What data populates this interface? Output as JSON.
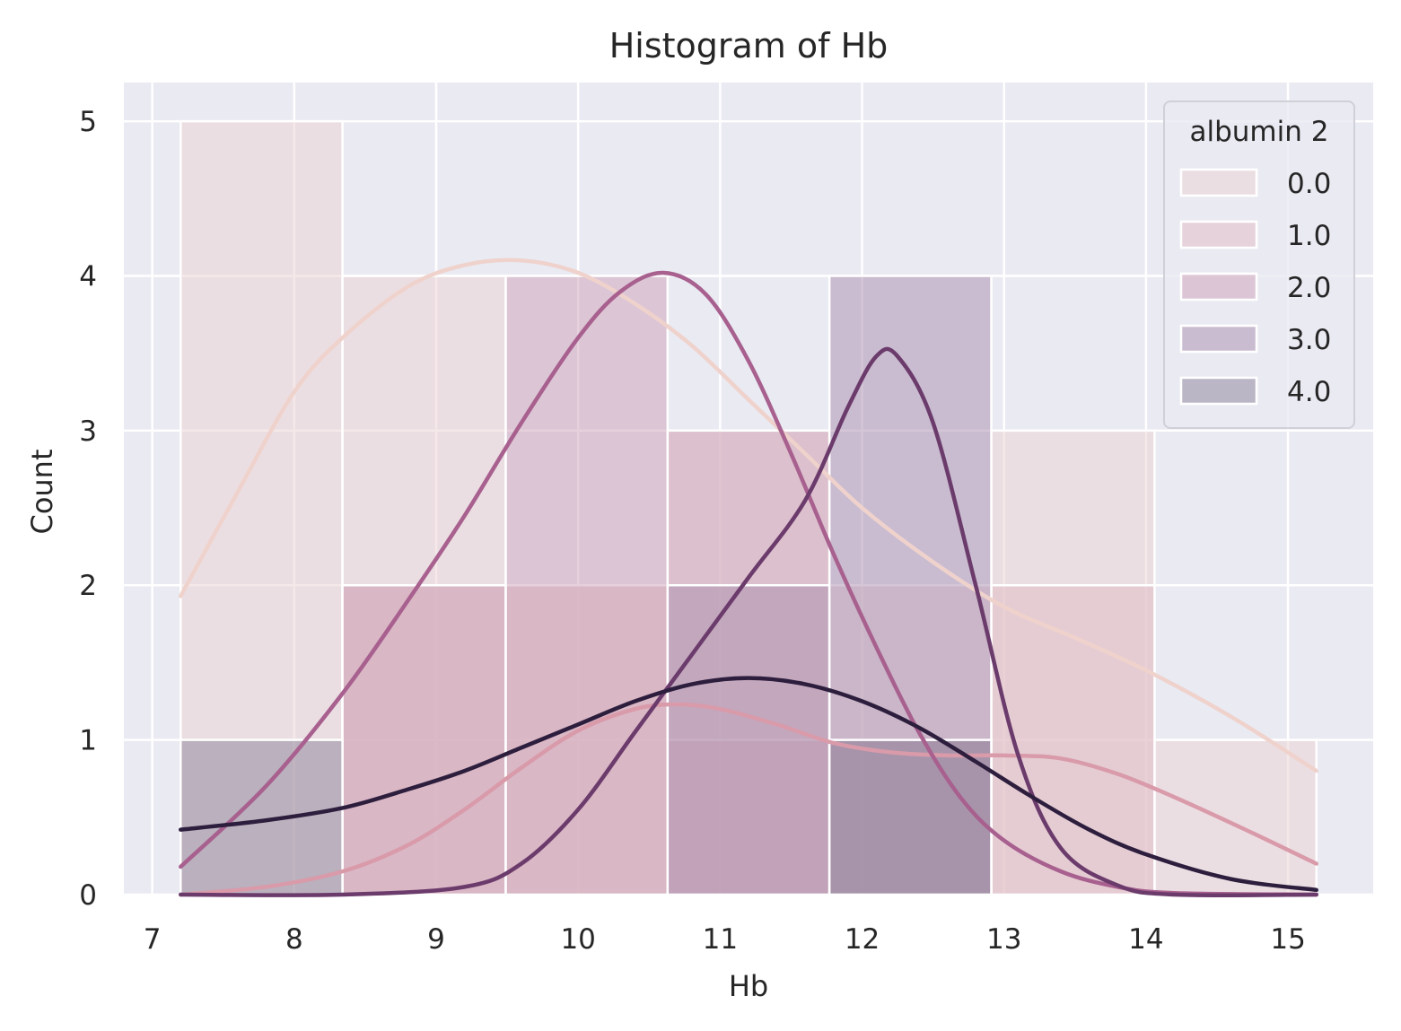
{
  "chart_data": {
    "type": "bar",
    "title": "Histogram of Hb",
    "xlabel": "Hb",
    "ylabel": "Count",
    "xlim": [
      6.8,
      15.6
    ],
    "ylim": [
      0,
      5.25
    ],
    "xticks": [
      "7",
      "8",
      "9",
      "10",
      "11",
      "12",
      "13",
      "14",
      "15"
    ],
    "yticks": [
      "0",
      "1",
      "2",
      "3",
      "4",
      "5"
    ],
    "grid": true,
    "bin_edges": [
      7.2,
      8.34,
      9.49,
      10.63,
      11.77,
      12.91,
      14.06,
      15.2
    ],
    "legend": {
      "title": "albumin 2",
      "placement": "top-right"
    },
    "series": [
      {
        "name": "0.0",
        "color": "#ebd2d2",
        "line_color": "#efd2cc",
        "counts": [
          5,
          4,
          2,
          3,
          2,
          3,
          1
        ],
        "kde": [
          [
            7.2,
            1.93
          ],
          [
            7.6,
            2.6
          ],
          [
            8.0,
            3.25
          ],
          [
            8.34,
            3.6
          ],
          [
            8.8,
            3.93
          ],
          [
            9.2,
            4.07
          ],
          [
            9.6,
            4.1
          ],
          [
            10.0,
            4.02
          ],
          [
            10.4,
            3.82
          ],
          [
            10.8,
            3.55
          ],
          [
            11.2,
            3.2
          ],
          [
            11.6,
            2.85
          ],
          [
            12.0,
            2.5
          ],
          [
            12.5,
            2.15
          ],
          [
            13.0,
            1.86
          ],
          [
            13.5,
            1.66
          ],
          [
            14.0,
            1.45
          ],
          [
            14.6,
            1.15
          ],
          [
            15.2,
            0.8
          ]
        ]
      },
      {
        "name": "1.0",
        "color": "#dfb9c3",
        "line_color": "#d99aaa",
        "counts": [
          0,
          2,
          2,
          1,
          0,
          2,
          0
        ],
        "kde": [
          [
            7.2,
            0.0
          ],
          [
            7.8,
            0.05
          ],
          [
            8.34,
            0.15
          ],
          [
            8.8,
            0.32
          ],
          [
            9.2,
            0.55
          ],
          [
            9.6,
            0.82
          ],
          [
            10.0,
            1.06
          ],
          [
            10.4,
            1.2
          ],
          [
            10.7,
            1.23
          ],
          [
            11.0,
            1.2
          ],
          [
            11.4,
            1.1
          ],
          [
            11.8,
            0.98
          ],
          [
            12.2,
            0.92
          ],
          [
            12.6,
            0.9
          ],
          [
            13.0,
            0.9
          ],
          [
            13.4,
            0.88
          ],
          [
            13.8,
            0.78
          ],
          [
            14.2,
            0.63
          ],
          [
            14.7,
            0.42
          ],
          [
            15.2,
            0.2
          ]
        ]
      },
      {
        "name": "2.0",
        "color": "#cda1b7",
        "line_color": "#a8608f",
        "counts": [
          0,
          2,
          4,
          3,
          1,
          0,
          0
        ],
        "kde": [
          [
            7.2,
            0.18
          ],
          [
            7.8,
            0.7
          ],
          [
            8.34,
            1.3
          ],
          [
            8.8,
            1.9
          ],
          [
            9.2,
            2.45
          ],
          [
            9.6,
            3.05
          ],
          [
            10.0,
            3.6
          ],
          [
            10.3,
            3.9
          ],
          [
            10.6,
            4.02
          ],
          [
            10.9,
            3.88
          ],
          [
            11.2,
            3.45
          ],
          [
            11.5,
            2.85
          ],
          [
            11.8,
            2.2
          ],
          [
            12.1,
            1.6
          ],
          [
            12.4,
            1.05
          ],
          [
            12.7,
            0.62
          ],
          [
            13.0,
            0.35
          ],
          [
            13.4,
            0.15
          ],
          [
            13.8,
            0.05
          ],
          [
            14.2,
            0.01
          ],
          [
            15.2,
            0.0
          ]
        ]
      },
      {
        "name": "3.0",
        "color": "#a98eae",
        "line_color": "#6b3b6c",
        "counts": [
          0,
          0,
          0,
          2,
          4,
          0,
          0
        ],
        "kde": [
          [
            7.2,
            0.0
          ],
          [
            8.34,
            0.0
          ],
          [
            9.2,
            0.05
          ],
          [
            9.6,
            0.2
          ],
          [
            10.0,
            0.55
          ],
          [
            10.4,
            1.05
          ],
          [
            10.8,
            1.55
          ],
          [
            11.2,
            2.05
          ],
          [
            11.6,
            2.55
          ],
          [
            11.9,
            3.15
          ],
          [
            12.1,
            3.48
          ],
          [
            12.25,
            3.48
          ],
          [
            12.5,
            3.05
          ],
          [
            12.8,
            2.0
          ],
          [
            13.1,
            0.9
          ],
          [
            13.4,
            0.3
          ],
          [
            13.8,
            0.06
          ],
          [
            14.2,
            0.0
          ],
          [
            15.2,
            0.0
          ]
        ]
      },
      {
        "name": "4.0",
        "color": "#8c8198",
        "line_color": "#2d1e3e",
        "counts": [
          1,
          0,
          0,
          0,
          1,
          0,
          0
        ],
        "kde": [
          [
            7.2,
            0.42
          ],
          [
            7.8,
            0.48
          ],
          [
            8.34,
            0.56
          ],
          [
            8.8,
            0.68
          ],
          [
            9.2,
            0.8
          ],
          [
            9.6,
            0.95
          ],
          [
            10.0,
            1.1
          ],
          [
            10.4,
            1.25
          ],
          [
            10.8,
            1.36
          ],
          [
            11.2,
            1.4
          ],
          [
            11.6,
            1.36
          ],
          [
            12.0,
            1.25
          ],
          [
            12.4,
            1.08
          ],
          [
            12.8,
            0.86
          ],
          [
            13.2,
            0.63
          ],
          [
            13.6,
            0.42
          ],
          [
            14.0,
            0.26
          ],
          [
            14.6,
            0.1
          ],
          [
            15.2,
            0.03
          ]
        ]
      }
    ]
  }
}
